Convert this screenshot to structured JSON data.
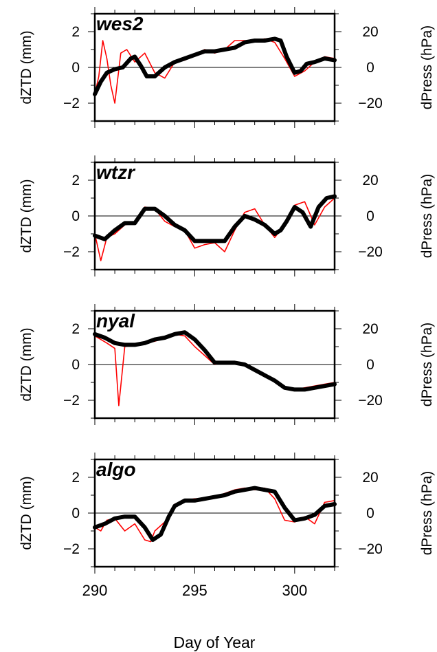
{
  "figure": {
    "xlabel": "Day of Year"
  },
  "chart_data": [
    {
      "type": "line",
      "station": "wes2",
      "ylabel_left": "dZTD (mm)",
      "ylabel_right": "dPress (hPa)",
      "xlim": [
        290,
        302
      ],
      "ylim_left": [
        -3,
        3
      ],
      "ylim_right": [
        -30,
        30
      ],
      "y_ticks_left": [
        "2",
        "0",
        "−2"
      ],
      "y_ticks_right": [
        "20",
        "0",
        "−20"
      ],
      "zero_line": true,
      "series": [
        {
          "color": "#ff0000",
          "x": [
            290.0,
            290.2,
            290.4,
            290.6,
            290.8,
            291.0,
            291.3,
            291.6,
            292.0,
            292.5,
            293.0,
            293.5,
            294.0,
            294.5,
            295.0,
            295.5,
            296.0,
            296.5,
            297.0,
            297.5,
            298.0,
            298.5,
            299.0,
            299.5,
            300.0,
            300.5,
            301.0,
            301.5,
            302.0
          ],
          "y": [
            -1.5,
            -0.5,
            1.5,
            0.5,
            -1.0,
            -2.0,
            0.8,
            1.0,
            0.3,
            0.8,
            -0.3,
            -0.6,
            0.3,
            0.4,
            0.7,
            1.0,
            0.8,
            1.0,
            1.5,
            1.5,
            1.5,
            1.6,
            1.4,
            0.5,
            -0.5,
            -0.2,
            0.3,
            0.6,
            0.5
          ]
        },
        {
          "color": "#000000",
          "x": [
            290.0,
            290.3,
            290.6,
            291.0,
            291.4,
            291.8,
            292.0,
            292.3,
            292.6,
            293.0,
            293.5,
            294.0,
            294.5,
            295.0,
            295.5,
            296.0,
            296.5,
            297.0,
            297.5,
            298.0,
            298.5,
            299.0,
            299.3,
            299.6,
            300.0,
            300.3,
            300.6,
            301.0,
            301.5,
            302.0
          ],
          "y": [
            -1.5,
            -0.8,
            -0.3,
            -0.1,
            0.0,
            0.5,
            0.6,
            0.1,
            -0.5,
            -0.5,
            0.0,
            0.3,
            0.5,
            0.7,
            0.9,
            0.9,
            1.0,
            1.1,
            1.4,
            1.5,
            1.5,
            1.6,
            1.5,
            0.6,
            -0.3,
            -0.2,
            0.2,
            0.3,
            0.5,
            0.4
          ]
        }
      ]
    },
    {
      "type": "line",
      "station": "wtzr",
      "ylabel_left": "dZTD (mm)",
      "ylabel_right": "dPress (hPa)",
      "xlim": [
        290,
        302
      ],
      "ylim_left": [
        -3,
        3
      ],
      "ylim_right": [
        -30,
        30
      ],
      "y_ticks_left": [
        "2",
        "0",
        "−2"
      ],
      "y_ticks_right": [
        "20",
        "0",
        "−20"
      ],
      "zero_line": true,
      "series": [
        {
          "color": "#ff0000",
          "x": [
            290.0,
            290.3,
            290.6,
            291.0,
            291.5,
            292.0,
            292.5,
            293.0,
            293.5,
            294.0,
            294.5,
            295.0,
            295.5,
            296.0,
            296.5,
            297.0,
            297.5,
            298.0,
            298.5,
            299.0,
            299.5,
            300.0,
            300.5,
            301.0,
            301.5,
            302.0
          ],
          "y": [
            -1.0,
            -2.5,
            -1.2,
            -1.0,
            -0.5,
            -0.4,
            0.5,
            0.4,
            -0.3,
            -0.6,
            -0.8,
            -1.8,
            -1.6,
            -1.5,
            -2.0,
            -0.8,
            0.2,
            0.4,
            -0.5,
            -1.2,
            -0.5,
            0.6,
            0.8,
            -0.5,
            0.5,
            1.0
          ]
        },
        {
          "color": "#000000",
          "x": [
            290.0,
            290.5,
            291.0,
            291.5,
            292.0,
            292.5,
            293.0,
            293.5,
            294.0,
            294.5,
            295.0,
            295.5,
            296.0,
            296.5,
            297.0,
            297.5,
            298.0,
            298.5,
            299.0,
            299.3,
            299.6,
            300.0,
            300.4,
            300.8,
            301.2,
            301.6,
            302.0
          ],
          "y": [
            -1.1,
            -1.3,
            -0.8,
            -0.4,
            -0.4,
            0.4,
            0.4,
            0.0,
            -0.5,
            -0.8,
            -1.4,
            -1.4,
            -1.4,
            -1.4,
            -0.6,
            0.0,
            -0.2,
            -0.5,
            -1.0,
            -0.8,
            -0.3,
            0.5,
            0.2,
            -0.6,
            0.5,
            1.0,
            1.1
          ]
        }
      ]
    },
    {
      "type": "line",
      "station": "nyal",
      "ylabel_left": "dZTD (mm)",
      "ylabel_right": "dPress (hPa)",
      "xlim": [
        290,
        302
      ],
      "ylim_left": [
        -3,
        3
      ],
      "ylim_right": [
        -30,
        30
      ],
      "y_ticks_left": [
        "2",
        "0",
        "−2"
      ],
      "y_ticks_right": [
        "20",
        "0",
        "−20"
      ],
      "zero_line": true,
      "series": [
        {
          "color": "#ff0000",
          "x": [
            290.0,
            290.3,
            290.6,
            291.0,
            291.2,
            291.5,
            292.0,
            292.5,
            293.0,
            293.5,
            294.0,
            294.5,
            295.0,
            295.5,
            296.0,
            296.5,
            297.0,
            297.5,
            298.0,
            298.5,
            299.0,
            299.5,
            300.0,
            300.5,
            301.0,
            301.5,
            302.0
          ],
          "y": [
            1.6,
            1.4,
            1.2,
            0.9,
            -2.3,
            1.0,
            1.1,
            1.2,
            1.3,
            1.5,
            1.7,
            1.6,
            1.0,
            0.5,
            0.0,
            0.1,
            0.1,
            0.0,
            -0.3,
            -0.6,
            -0.9,
            -1.3,
            -1.4,
            -1.3,
            -1.2,
            -1.1,
            -1.0
          ]
        },
        {
          "color": "#000000",
          "x": [
            290.0,
            290.5,
            291.0,
            291.5,
            292.0,
            292.5,
            293.0,
            293.5,
            294.0,
            294.5,
            295.0,
            295.5,
            296.0,
            296.5,
            297.0,
            297.5,
            298.0,
            298.5,
            299.0,
            299.5,
            300.0,
            300.5,
            301.0,
            301.5,
            302.0
          ],
          "y": [
            1.7,
            1.5,
            1.2,
            1.1,
            1.1,
            1.2,
            1.4,
            1.5,
            1.7,
            1.8,
            1.4,
            0.8,
            0.1,
            0.1,
            0.1,
            0.0,
            -0.3,
            -0.6,
            -0.9,
            -1.3,
            -1.4,
            -1.4,
            -1.3,
            -1.2,
            -1.1
          ]
        }
      ]
    },
    {
      "type": "line",
      "station": "algo",
      "ylabel_left": "dZTD (mm)",
      "ylabel_right": "dPress (hPa)",
      "xlim": [
        290,
        302
      ],
      "ylim_left": [
        -3,
        3
      ],
      "ylim_right": [
        -30,
        30
      ],
      "y_ticks_left": [
        "2",
        "0",
        "−2"
      ],
      "y_ticks_right": [
        "20",
        "0",
        "−20"
      ],
      "x_ticks": [
        "290",
        "295",
        "300"
      ],
      "zero_line": true,
      "series": [
        {
          "color": "#ff0000",
          "x": [
            290.0,
            290.3,
            290.6,
            291.0,
            291.5,
            292.0,
            292.5,
            292.8,
            293.0,
            293.5,
            294.0,
            294.5,
            295.0,
            295.5,
            296.0,
            296.5,
            297.0,
            297.5,
            298.0,
            298.5,
            299.0,
            299.5,
            300.0,
            300.5,
            301.0,
            301.5,
            302.0
          ],
          "y": [
            -0.8,
            -1.0,
            -0.4,
            -0.3,
            -1.0,
            -0.6,
            -1.5,
            -1.6,
            -1.0,
            -0.5,
            0.5,
            0.7,
            0.8,
            0.8,
            0.9,
            1.1,
            1.3,
            1.4,
            1.3,
            1.4,
            0.8,
            -0.4,
            -0.5,
            -0.2,
            -0.6,
            0.6,
            0.7
          ]
        },
        {
          "color": "#000000",
          "x": [
            290.0,
            290.5,
            291.0,
            291.5,
            292.0,
            292.5,
            292.9,
            293.3,
            293.7,
            294.0,
            294.5,
            295.0,
            295.5,
            296.0,
            296.5,
            297.0,
            297.5,
            298.0,
            298.5,
            299.0,
            299.5,
            300.0,
            300.5,
            301.0,
            301.5,
            302.0
          ],
          "y": [
            -0.8,
            -0.6,
            -0.3,
            -0.2,
            -0.2,
            -0.8,
            -1.5,
            -1.2,
            -0.2,
            0.4,
            0.7,
            0.7,
            0.8,
            0.9,
            1.0,
            1.2,
            1.3,
            1.4,
            1.3,
            1.2,
            0.3,
            -0.4,
            -0.3,
            -0.1,
            0.4,
            0.5
          ]
        }
      ]
    }
  ]
}
